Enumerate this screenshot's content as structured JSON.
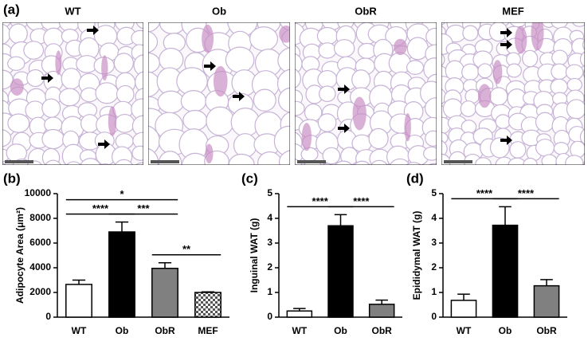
{
  "panel_a": {
    "label": "(a)",
    "images": [
      "WT",
      "Ob",
      "ObR",
      "MEF"
    ]
  },
  "chart_data": [
    {
      "type": "bar",
      "panel_label": "(b)",
      "ylabel": "Adipocyte Area (μm²)",
      "categories": [
        "WT",
        "Ob",
        "ObR",
        "MEF"
      ],
      "values": [
        2650,
        6900,
        3950,
        2000
      ],
      "errors": [
        350,
        800,
        450,
        50
      ],
      "colors": [
        "#ffffff",
        "#000000",
        "#808080",
        "#ffffff"
      ],
      "patterns": [
        null,
        null,
        null,
        "checkered"
      ],
      "ylim": [
        0,
        10000
      ],
      "yticks": [
        0,
        2000,
        4000,
        6000,
        8000,
        10000
      ],
      "annotations": [
        {
          "text": "*",
          "from": 0,
          "to": 2
        },
        {
          "text": "****",
          "from": 0,
          "to": 1
        },
        {
          "text": "***",
          "from": 1,
          "to": 2
        },
        {
          "text": "**",
          "from": 2,
          "to": 3
        }
      ]
    },
    {
      "type": "bar",
      "panel_label": "(c)",
      "ylabel": "Inguinal WAT (g)",
      "categories": [
        "WT",
        "Ob",
        "ObR"
      ],
      "values": [
        0.25,
        3.7,
        0.52
      ],
      "errors": [
        0.1,
        0.45,
        0.17
      ],
      "colors": [
        "#ffffff",
        "#000000",
        "#808080"
      ],
      "patterns": [
        null,
        null,
        null
      ],
      "ylim": [
        0,
        5
      ],
      "yticks": [
        0,
        1,
        2,
        3,
        4,
        5
      ],
      "annotations": [
        {
          "text": "****",
          "from": 0,
          "to": 1
        },
        {
          "text": "****",
          "from": 1,
          "to": 2
        }
      ]
    },
    {
      "type": "bar",
      "panel_label": "(d)",
      "ylabel": "Epididymal WAT (g)",
      "categories": [
        "WT",
        "Ob",
        "ObR"
      ],
      "values": [
        0.68,
        3.72,
        1.27
      ],
      "errors": [
        0.25,
        0.75,
        0.25
      ],
      "colors": [
        "#ffffff",
        "#000000",
        "#808080"
      ],
      "patterns": [
        null,
        null,
        null
      ],
      "ylim": [
        0,
        5
      ],
      "yticks": [
        0,
        1,
        2,
        3,
        4,
        5
      ],
      "annotations": [
        {
          "text": "****",
          "from": 0,
          "to": 1
        },
        {
          "text": "****",
          "from": 1,
          "to": 2
        }
      ]
    }
  ]
}
